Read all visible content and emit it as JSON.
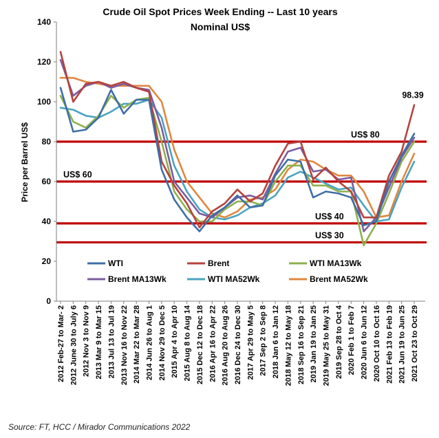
{
  "chart_data": {
    "type": "line",
    "title": "Crude Oil Spot Prices Week Ending -- Last 10 years",
    "subtitle": "Nominal US$",
    "ylabel": "Price per Barrel US$",
    "xlabel": "",
    "ylim": [
      0,
      140
    ],
    "yticks": [
      0,
      20,
      40,
      60,
      80,
      100,
      120,
      140
    ],
    "grid": false,
    "legend_position": "bottom-inside",
    "categories": [
      "2012 Feb-27 to Mar- 2",
      "2012 June 30 to July 6",
      "2012 Nov 3 to Nov 9",
      "2013 Mar 9 to Mar 15",
      "2013 Jul 13 to Jul 19",
      "2013 Nov 16 to Nov 22",
      "2014 Mar 22 to Mar 28",
      "2014 Jun 26 to Aug 1",
      "2014 Nov 29 to Dec 5",
      "2015 Apr 4 to Apr 10",
      "2015 Aug 8 to Aug 14",
      "2015 Dec 12 to Dec 18",
      "2016 Apr 16 to Apr 22",
      "2016 Aug 20 to Aug 26",
      "2016 Dec 24 to Dec 30",
      "2017 Apr 29 to May 5",
      "2017 Sep 2 to Sep 8",
      "2018 Jan 6 to Jan 12",
      "2018 May 12 to May 18",
      "2018 Sep 16 to Sep 21",
      "2019 Jan 19 to Jan 25",
      "2019 May 25 to May 31",
      "2019 Sep 28 to Oct 4",
      "2020 Feb 1 to Feb 7",
      "2020 Jun 6 to Jun 12",
      "2020 Oct 10 to Oct 16",
      "2021 Feb 13 to Feb 19",
      "2021 Jun 19 to Jun 25",
      "2021 Oct 23 to Oct 29"
    ],
    "series": [
      {
        "name": "WTI",
        "color": "#3E6EA6",
        "values": [
          107,
          85,
          86,
          92,
          106,
          94,
          101,
          101,
          66,
          51,
          42,
          35,
          43,
          47,
          53,
          47,
          48,
          63,
          71,
          70,
          52,
          55,
          54,
          52,
          38,
          40,
          60,
          73,
          84
        ]
      },
      {
        "name": "Brent",
        "color": "#B5423D",
        "values": [
          125,
          100,
          109,
          110,
          108,
          110,
          107,
          105,
          70,
          58,
          49,
          37,
          45,
          49,
          56,
          50,
          54,
          68,
          79,
          80,
          61,
          67,
          60,
          55,
          42,
          42,
          63,
          75,
          98.39
        ]
      },
      {
        "name": "WTI MA13Wk",
        "color": "#8DB04E",
        "values": [
          103,
          90,
          87,
          93,
          103,
          97,
          101,
          102,
          80,
          55,
          46,
          40,
          40,
          46,
          50,
          50,
          48,
          60,
          68,
          68,
          58,
          58,
          55,
          55,
          28,
          39,
          54,
          70,
          80
        ]
      },
      {
        "name": "Brent MA13Wk",
        "color": "#7B5C9E",
        "values": [
          121,
          103,
          108,
          110,
          107,
          109,
          107,
          106,
          87,
          60,
          52,
          44,
          42,
          47,
          52,
          53,
          51,
          64,
          75,
          77,
          65,
          66,
          61,
          62,
          35,
          42,
          57,
          72,
          82
        ]
      },
      {
        "name": "WTI MA52Wk",
        "color": "#4BA3C0",
        "values": [
          97,
          96,
          93,
          92,
          95,
          99,
          99,
          101,
          92,
          68,
          55,
          46,
          42,
          41,
          43,
          47,
          49,
          53,
          62,
          65,
          62,
          59,
          56,
          57,
          48,
          40,
          41,
          57,
          70
        ]
      },
      {
        "name": "Brent MA52Wk",
        "color": "#E0873E",
        "values": [
          112,
          112,
          110,
          109,
          108,
          108,
          108,
          108,
          100,
          76,
          60,
          52,
          44,
          42,
          45,
          51,
          52,
          56,
          66,
          71,
          70,
          66,
          63,
          63,
          55,
          42,
          43,
          60,
          74
        ]
      }
    ],
    "reference_lines": [
      {
        "value": 80,
        "label": "US$ 80",
        "color": "#C00000"
      },
      {
        "value": 60,
        "label": "US$ 60",
        "color": "#C00000"
      },
      {
        "value": 39,
        "label": "US$ 40",
        "color": "#C00000"
      },
      {
        "value": 29.5,
        "label": "US$ 30",
        "color": "#C00000"
      }
    ],
    "annotations": [
      {
        "text": "98.39",
        "x": "2021 Oct 23 to Oct 29",
        "y": 98.39
      }
    ]
  },
  "source": "Source: FT, HCC / Mirador Communications 2022"
}
